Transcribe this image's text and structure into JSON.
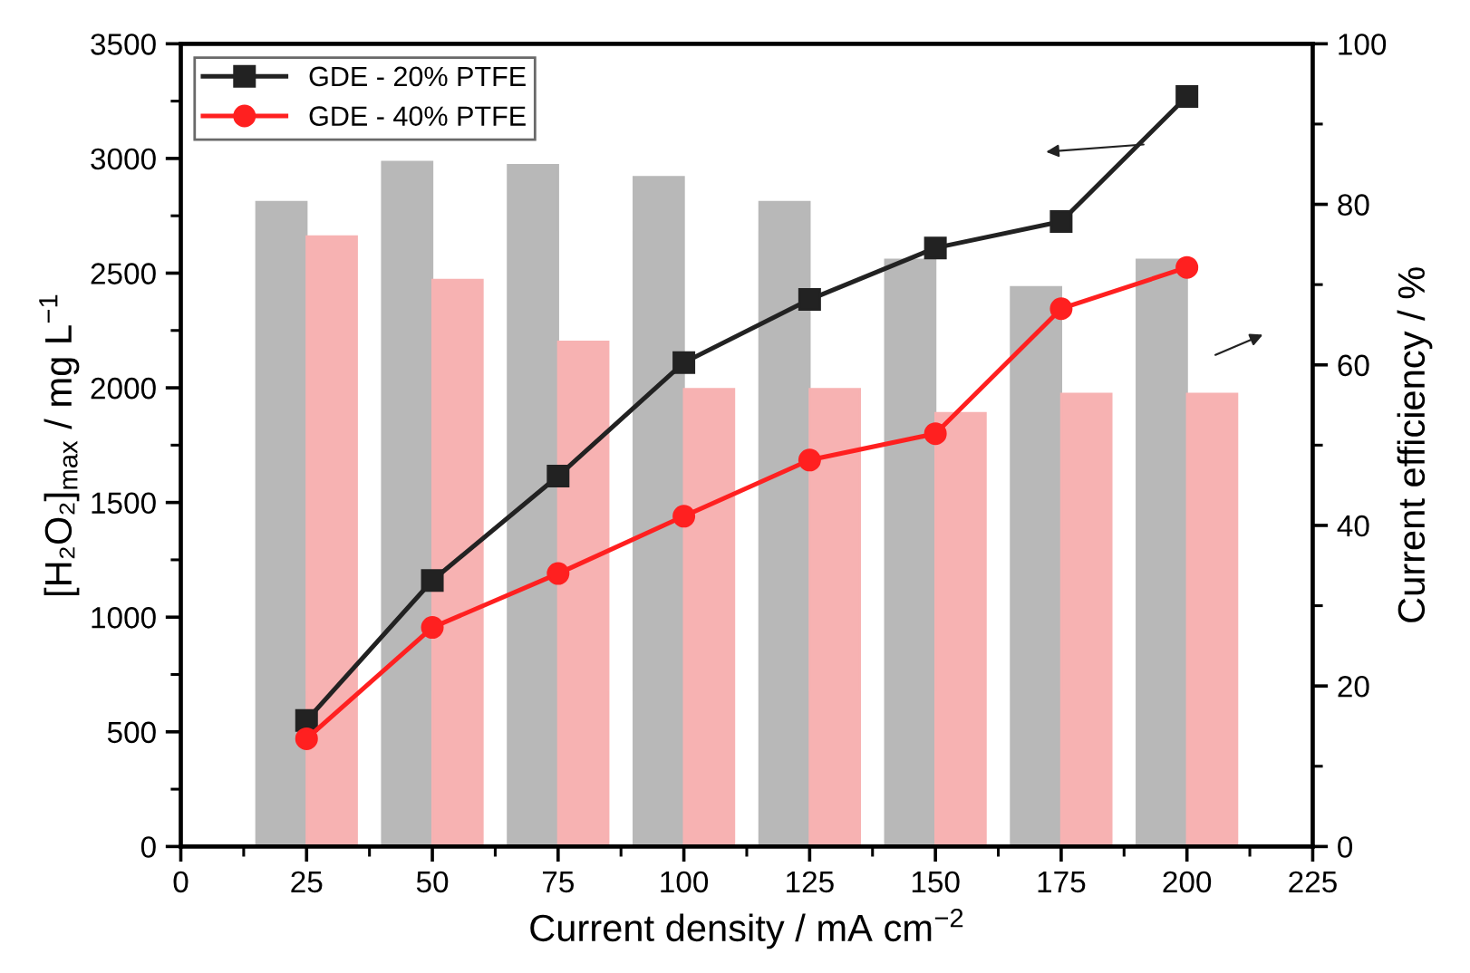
{
  "chart_data": {
    "type": "line",
    "xlabel": "Current density / mA cm$^{−2}$",
    "ylabel": "[H₂O₂]$_{max}$ / mg L$^{−1}$",
    "y2label": "Current efficiency / %",
    "x": [
      25,
      50,
      75,
      100,
      125,
      150,
      175,
      200
    ],
    "xlim": [
      0,
      225
    ],
    "xticks": [
      0,
      25,
      50,
      75,
      100,
      125,
      150,
      175,
      200,
      225
    ],
    "ylim": [
      0,
      3500
    ],
    "yticks": [
      0,
      500,
      1000,
      1500,
      2000,
      2500,
      3000,
      3500
    ],
    "y2lim": [
      0,
      100
    ],
    "y2ticks": [
      0,
      20,
      40,
      60,
      80,
      100
    ],
    "grid": false,
    "legend": "top left",
    "series": [
      {
        "type": "bar",
        "axis": "y2",
        "color": "#b8b8b8",
        "values": [
          80.3,
          85.3,
          84.9,
          83.4,
          80.3,
          73.1,
          69.7,
          73.1
        ]
      },
      {
        "type": "bar",
        "axis": "y2",
        "color": "#f7b2b2",
        "values": [
          76,
          70.6,
          62.9,
          57,
          57,
          54,
          56.4,
          56.4
        ]
      },
      {
        "axis": "y",
        "name": "GDE - 20% PTFE",
        "color": "#222222",
        "marker": "square",
        "line_style": "solid",
        "values": [
          550,
          1160,
          1615,
          2110,
          2385,
          2610,
          2725,
          3270
        ]
      },
      {
        "axis": "y",
        "name": "GDE - 40% PTFE",
        "color": "#ff2020",
        "marker": "circle",
        "line_style": "solid",
        "values": [
          470,
          955,
          1190,
          1440,
          1685,
          1800,
          2345,
          2525
        ]
      }
    ]
  }
}
